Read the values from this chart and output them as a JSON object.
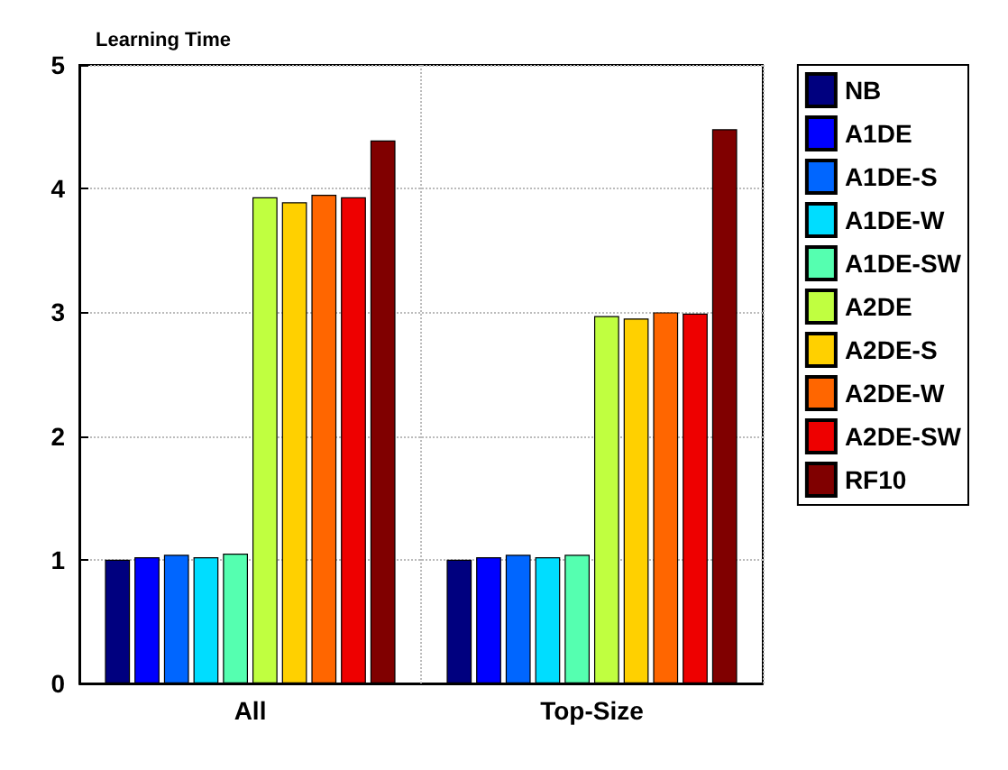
{
  "chart_data": {
    "type": "bar",
    "title": "Learning Time",
    "categories": [
      "All",
      "Top-Size"
    ],
    "series": [
      {
        "name": "NB",
        "color": "#00007f",
        "values": [
          1.0,
          1.0
        ]
      },
      {
        "name": "A1DE",
        "color": "#0000ff",
        "values": [
          1.02,
          1.02
        ]
      },
      {
        "name": "A1DE-S",
        "color": "#0066ff",
        "values": [
          1.04,
          1.04
        ]
      },
      {
        "name": "A1DE-W",
        "color": "#00ddff",
        "values": [
          1.02,
          1.02
        ]
      },
      {
        "name": "A1DE-SW",
        "color": "#55ffb0",
        "values": [
          1.05,
          1.04
        ]
      },
      {
        "name": "A2DE",
        "color": "#c0ff40",
        "values": [
          3.93,
          2.97
        ]
      },
      {
        "name": "A2DE-S",
        "color": "#ffd000",
        "values": [
          3.89,
          2.95
        ]
      },
      {
        "name": "A2DE-W",
        "color": "#ff6600",
        "values": [
          3.95,
          3.0
        ]
      },
      {
        "name": "A2DE-SW",
        "color": "#ee0000",
        "values": [
          3.93,
          2.99
        ]
      },
      {
        "name": "RF10",
        "color": "#800000",
        "values": [
          4.39,
          4.48
        ]
      }
    ],
    "ylim": [
      0,
      5
    ],
    "yticks": [
      0,
      1,
      2,
      3,
      4,
      5
    ],
    "grid": true,
    "legend": "right"
  }
}
